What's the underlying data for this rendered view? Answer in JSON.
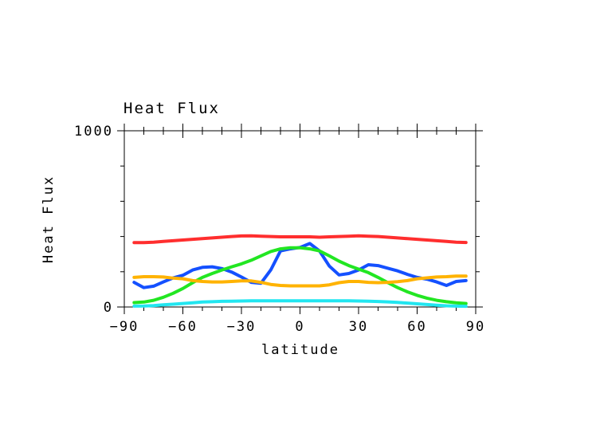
{
  "chart_data": {
    "type": "line",
    "title": "Heat Flux",
    "xlabel": "latitude",
    "ylabel": "Heat Flux",
    "xlim": [
      -90,
      90
    ],
    "ylim": [
      0,
      1000
    ],
    "x_ticks": [
      -90,
      -60,
      -30,
      0,
      30,
      60,
      90
    ],
    "y_ticks": [
      0,
      1000
    ],
    "x_tick_labels": [
      "−90",
      "−60",
      "−30",
      "0",
      "30",
      "60",
      "90"
    ],
    "y_tick_labels": [
      "0",
      "1000"
    ],
    "grid": false,
    "x": [
      -85,
      -80,
      -75,
      -70,
      -65,
      -60,
      -55,
      -50,
      -45,
      -40,
      -35,
      -30,
      -25,
      -20,
      -15,
      -10,
      -5,
      0,
      5,
      10,
      15,
      20,
      25,
      30,
      35,
      40,
      45,
      50,
      55,
      60,
      65,
      70,
      75,
      80,
      85
    ],
    "series": [
      {
        "color": "#ff2e2e",
        "values": [
          365,
          365,
          368,
          372,
          376,
          380,
          384,
          388,
          392,
          396,
          400,
          403,
          404,
          402,
          400,
          398,
          398,
          398,
          398,
          396,
          398,
          400,
          402,
          404,
          402,
          400,
          396,
          392,
          388,
          384,
          380,
          376,
          372,
          368,
          366
        ]
      },
      {
        "color": "#1450ff",
        "values": [
          140,
          110,
          118,
          142,
          165,
          180,
          210,
          225,
          228,
          218,
          198,
          170,
          140,
          135,
          210,
          318,
          330,
          338,
          360,
          318,
          232,
          182,
          190,
          210,
          240,
          235,
          220,
          205,
          185,
          168,
          158,
          142,
          122,
          145,
          150
        ]
      },
      {
        "color": "#22e622",
        "values": [
          25,
          28,
          38,
          55,
          78,
          105,
          138,
          168,
          190,
          210,
          228,
          245,
          265,
          290,
          315,
          330,
          336,
          336,
          330,
          318,
          290,
          260,
          235,
          215,
          195,
          168,
          138,
          110,
          86,
          66,
          50,
          38,
          30,
          24,
          20
        ]
      },
      {
        "color": "#ffb300",
        "values": [
          168,
          172,
          172,
          170,
          164,
          160,
          150,
          145,
          142,
          142,
          145,
          148,
          148,
          140,
          128,
          122,
          120,
          120,
          120,
          120,
          126,
          138,
          145,
          145,
          140,
          138,
          140,
          144,
          150,
          160,
          165,
          170,
          172,
          175,
          175
        ]
      },
      {
        "color": "#22e6f0",
        "values": [
          5,
          6,
          8,
          12,
          16,
          20,
          24,
          28,
          30,
          32,
          33,
          34,
          35,
          35,
          35,
          35,
          35,
          35,
          35,
          35,
          35,
          35,
          35,
          34,
          33,
          31,
          29,
          26,
          22,
          18,
          14,
          10,
          7,
          5,
          4
        ]
      }
    ]
  }
}
